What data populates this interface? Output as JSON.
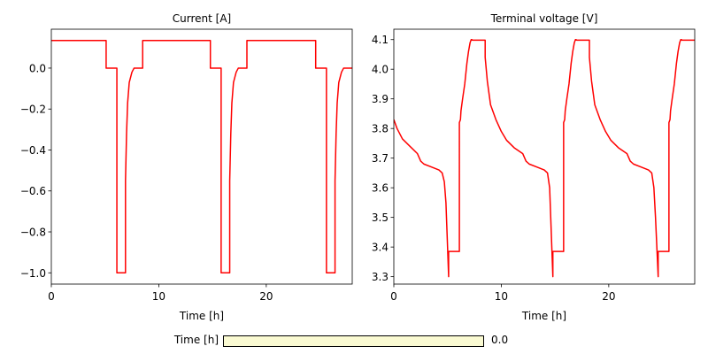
{
  "chart_data": [
    {
      "type": "line",
      "title": "Current [A]",
      "xlabel": "Time [h]",
      "ylabel": "",
      "xlim": [
        0,
        28
      ],
      "ylim": [
        -1.055,
        0.19
      ],
      "xticks": [
        0,
        10,
        20
      ],
      "xtick_labels": [
        "0",
        "10",
        "20"
      ],
      "yticks": [
        0.0,
        -0.2,
        -0.4,
        -0.6,
        -0.8,
        -1.0
      ],
      "ytick_labels": [
        "0.0",
        "−0.2",
        "−0.4",
        "−0.6",
        "−0.8",
        "−1.0"
      ],
      "color": "#ff0000",
      "series": [
        {
          "x": [
            0,
            5.1,
            5.1,
            6.1,
            6.1,
            6.9,
            6.9,
            7.0,
            7.1,
            7.25,
            7.5,
            7.7,
            8.4,
            8.5,
            8.5,
            14.8,
            14.8,
            15.8,
            15.8,
            16.6,
            16.6,
            16.7,
            16.8,
            16.95,
            17.2,
            17.4,
            18.1,
            18.2,
            18.2,
            24.6,
            24.6,
            25.6,
            25.6,
            26.4,
            26.4,
            26.5,
            26.6,
            26.75,
            27.0,
            27.2,
            28.0
          ],
          "y": [
            0.135,
            0.135,
            0.0,
            0.0,
            -1.0,
            -1.0,
            -0.55,
            -0.32,
            -0.17,
            -0.07,
            -0.02,
            0.0,
            0.0,
            0.0,
            0.135,
            0.135,
            0.0,
            0.0,
            -1.0,
            -1.0,
            -0.55,
            -0.32,
            -0.17,
            -0.07,
            -0.02,
            0.0,
            0.0,
            0.0,
            0.135,
            0.135,
            0.0,
            0.0,
            -1.0,
            -1.0,
            -0.55,
            -0.32,
            -0.17,
            -0.07,
            -0.02,
            0.0,
            0.0
          ]
        }
      ]
    },
    {
      "type": "line",
      "title": "Terminal voltage [V]",
      "xlabel": "Time [h]",
      "ylabel": "",
      "xlim": [
        0,
        28
      ],
      "ylim": [
        3.275,
        4.135
      ],
      "xticks": [
        0,
        10,
        20
      ],
      "xtick_labels": [
        "0",
        "10",
        "20"
      ],
      "yticks": [
        3.3,
        3.4,
        3.5,
        3.6,
        3.7,
        3.8,
        3.9,
        4.0,
        4.1
      ],
      "ytick_labels": [
        "3.3",
        "3.4",
        "3.5",
        "3.6",
        "3.7",
        "3.8",
        "3.9",
        "4.0",
        "4.1"
      ],
      "color": "#ff0000",
      "series": [
        {
          "x": [
            0,
            0.3,
            0.8,
            1.5,
            2.2,
            2.5,
            2.8,
            3.5,
            4.2,
            4.5,
            4.7,
            4.85,
            4.95,
            5.05,
            5.1,
            5.1,
            6.1,
            6.1,
            6.2,
            6.25,
            6.4,
            6.6,
            6.8,
            6.95,
            7.1,
            7.2,
            7.25,
            7.35,
            7.4,
            8.5,
            8.5,
            8.7,
            9.0,
            9.5,
            10.0,
            10.5,
            11.2,
            12.0,
            12.3,
            12.6,
            13.3,
            14.0,
            14.3,
            14.5,
            14.6,
            14.72,
            14.8,
            14.8,
            15.8,
            15.8,
            15.9,
            15.95,
            16.1,
            16.3,
            16.5,
            16.65,
            16.8,
            16.9,
            16.95,
            17.05,
            17.1,
            18.2,
            18.2,
            18.4,
            18.7,
            19.2,
            19.7,
            20.2,
            20.9,
            21.7,
            22.0,
            22.3,
            23.0,
            23.7,
            24.0,
            24.2,
            24.35,
            24.5,
            24.6,
            24.6,
            25.6,
            25.6,
            25.7,
            25.75,
            25.9,
            26.1,
            26.3,
            26.45,
            26.6,
            26.7,
            26.75,
            26.85,
            26.9,
            28.0
          ],
          "y": [
            3.83,
            3.8,
            3.765,
            3.74,
            3.715,
            3.69,
            3.68,
            3.67,
            3.66,
            3.65,
            3.62,
            3.55,
            3.45,
            3.35,
            3.3,
            3.385,
            3.385,
            3.82,
            3.83,
            3.86,
            3.9,
            3.95,
            4.02,
            4.06,
            4.09,
            4.1,
            4.1,
            4.098,
            4.098,
            4.098,
            4.04,
            3.96,
            3.88,
            3.83,
            3.79,
            3.76,
            3.735,
            3.715,
            3.69,
            3.68,
            3.67,
            3.66,
            3.65,
            3.6,
            3.5,
            3.38,
            3.3,
            3.385,
            3.385,
            3.82,
            3.83,
            3.86,
            3.9,
            3.95,
            4.02,
            4.06,
            4.09,
            4.1,
            4.1,
            4.098,
            4.098,
            4.098,
            4.04,
            3.96,
            3.88,
            3.83,
            3.79,
            3.76,
            3.735,
            3.715,
            3.69,
            3.68,
            3.67,
            3.66,
            3.65,
            3.6,
            3.5,
            3.38,
            3.3,
            3.385,
            3.385,
            3.82,
            3.83,
            3.86,
            3.9,
            3.95,
            4.02,
            4.06,
            4.09,
            4.1,
            4.1,
            4.098,
            4.098,
            4.098
          ]
        }
      ]
    }
  ],
  "slider": {
    "label": "Time [h]",
    "value": "0.0",
    "fill_fraction": 0.0,
    "track_color": "#fafad2"
  }
}
